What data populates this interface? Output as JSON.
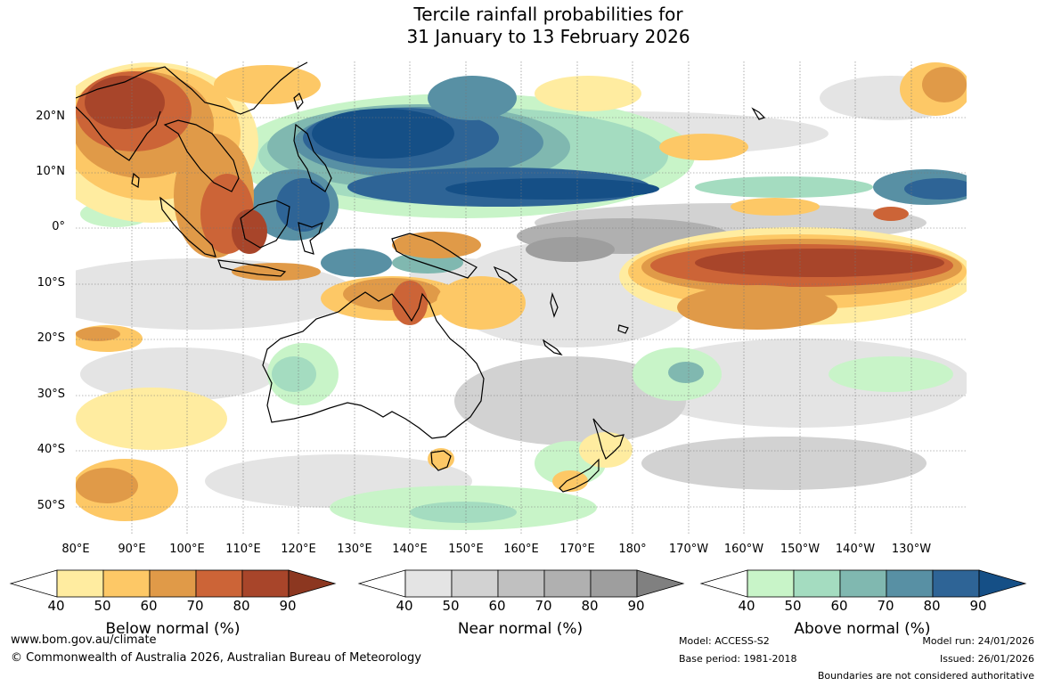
{
  "title": {
    "line1": "Tercile rainfall probabilities for",
    "line2": "31 January to 13 February 2026"
  },
  "map": {
    "lat_labels": [
      "20°N",
      "10°N",
      "0°",
      "10°S",
      "20°S",
      "30°S",
      "40°S",
      "50°S"
    ],
    "lon_labels": [
      "80°E",
      "90°E",
      "100°E",
      "110°E",
      "120°E",
      "130°E",
      "140°E",
      "150°E",
      "160°E",
      "170°E",
      "180°",
      "170°W",
      "160°W",
      "150°W",
      "140°W",
      "130°W"
    ]
  },
  "colorbars": [
    {
      "name": "below",
      "title": "Below normal (%)",
      "ticks": [
        "40",
        "50",
        "60",
        "70",
        "80",
        "90"
      ],
      "colors": [
        "#ffffff",
        "#ffeca0",
        "#fdc866",
        "#e09a48",
        "#cc6437",
        "#a8452a",
        "#8c3720"
      ]
    },
    {
      "name": "near",
      "title": "Near normal (%)",
      "ticks": [
        "40",
        "50",
        "60",
        "70",
        "80",
        "90"
      ],
      "colors": [
        "#ffffff",
        "#e4e4e4",
        "#d2d2d2",
        "#c0c0c0",
        "#b0b0b0",
        "#9e9e9e",
        "#808080"
      ]
    },
    {
      "name": "above",
      "title": "Above normal (%)",
      "ticks": [
        "40",
        "50",
        "60",
        "70",
        "80",
        "90"
      ],
      "colors": [
        "#ffffff",
        "#c8f4c8",
        "#a4dcc0",
        "#80b8b0",
        "#5890a4",
        "#2e6496",
        "#154f86"
      ]
    }
  ],
  "footer": {
    "url": "www.bom.gov.au/climate",
    "copyright": "© Commonwealth of Australia 2026, Australian Bureau of Meteorology",
    "model": "Model: ACCESS-S2",
    "base_period": "Base period: 1981-2018",
    "model_run": "Model run: 24/01/2026",
    "issued": "Issued: 26/01/2026",
    "disclaimer": "Boundaries are not considered authoritative"
  }
}
